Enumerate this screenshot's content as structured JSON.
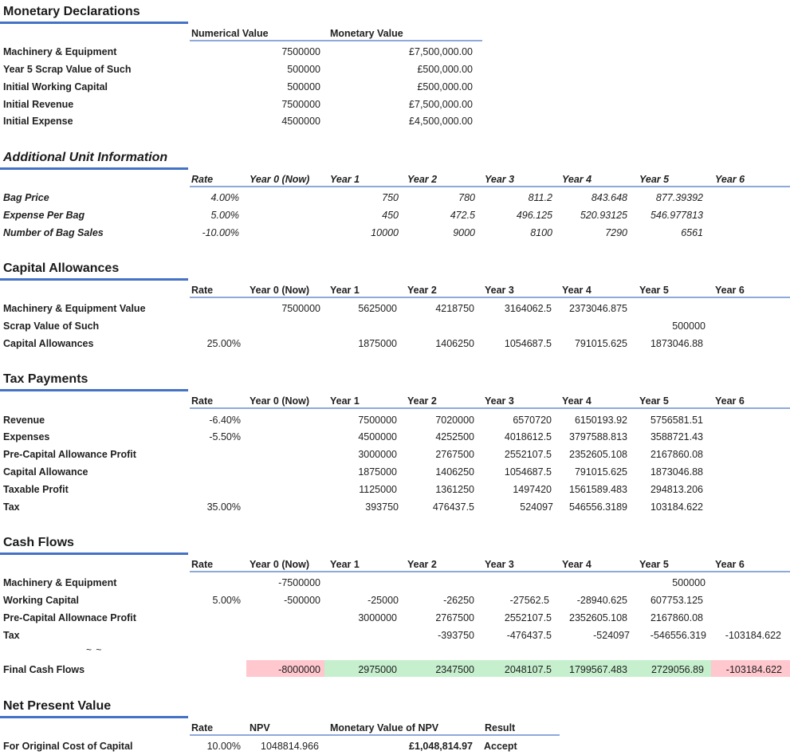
{
  "monetary": {
    "title": "Monetary Declarations",
    "col_numeric": "Numerical Value",
    "col_monetary": "Monetary Value",
    "rows": [
      {
        "label": "Machinery & Equipment",
        "num": "7500000",
        "money": "£7,500,000.00"
      },
      {
        "label": "Year 5 Scrap Value of Such",
        "num": "500000",
        "money": "£500,000.00"
      },
      {
        "label": "Initial Working Capital",
        "num": "500000",
        "money": "£500,000.00"
      },
      {
        "label": "Initial Revenue",
        "num": "7500000",
        "money": "£7,500,000.00"
      },
      {
        "label": "Initial Expense",
        "num": "4500000",
        "money": "£4,500,000.00"
      }
    ]
  },
  "year_headers": {
    "rate": "Rate",
    "y0": "Year 0 (Now)",
    "y1": "Year 1",
    "y2": "Year 2",
    "y3": "Year 3",
    "y4": "Year 4",
    "y5": "Year 5",
    "y6": "Year 6"
  },
  "additional": {
    "title": "Additional Unit Information",
    "rows": [
      {
        "label": "Bag Price",
        "rate": "4.00%",
        "y1": "750",
        "y2": "780",
        "y3": "811.2",
        "y4": "843.648",
        "y5": "877.39392"
      },
      {
        "label": "Expense Per Bag",
        "rate": "5.00%",
        "y1": "450",
        "y2": "472.5",
        "y3": "496.125",
        "y4": "520.93125",
        "y5": "546.977813"
      },
      {
        "label": "Number of Bag Sales",
        "rate": "-10.00%",
        "y1": "10000",
        "y2": "9000",
        "y3": "8100",
        "y4": "7290",
        "y5": "6561"
      }
    ]
  },
  "capital": {
    "title": "Capital Allowances",
    "rows": [
      {
        "label": "Machinery & Equipment Value",
        "y0": "7500000",
        "y1": "5625000",
        "y2": "4218750",
        "y3": "3164062.5",
        "y4": "2373046.875"
      },
      {
        "label": "Scrap Value of Such",
        "y5": "500000"
      },
      {
        "label": "Capital Allowances",
        "rate": "25.00%",
        "y1": "1875000",
        "y2": "1406250",
        "y3": "1054687.5",
        "y4": "791015.625",
        "y5": "1873046.88"
      }
    ]
  },
  "tax": {
    "title": "Tax Payments",
    "rows": [
      {
        "label": "Revenue",
        "rate": "-6.40%",
        "y1": "7500000",
        "y2": "7020000",
        "y3": "6570720",
        "y4": "6150193.92",
        "y5": "5756581.51"
      },
      {
        "label": "Expenses",
        "rate": "-5.50%",
        "y1": "4500000",
        "y2": "4252500",
        "y3": "4018612.5",
        "y4": "3797588.813",
        "y5": "3588721.43"
      },
      {
        "label": "Pre-Capital Allowance Profit",
        "y1": "3000000",
        "y2": "2767500",
        "y3": "2552107.5",
        "y4": "2352605.108",
        "y5": "2167860.08"
      },
      {
        "label": "Capital Allowance",
        "y1": "1875000",
        "y2": "1406250",
        "y3": "1054687.5",
        "y4": "791015.625",
        "y5": "1873046.88"
      },
      {
        "label": "Taxable Profit",
        "y1": "1125000",
        "y2": "1361250",
        "y3": "1497420",
        "y4": "1561589.483",
        "y5": "294813.206"
      },
      {
        "label": "Tax",
        "rate": "35.00%",
        "y1": "393750",
        "y2": "476437.5",
        "y3": "524097",
        "y4": "546556.3189",
        "y5": "103184.622"
      }
    ]
  },
  "cash": {
    "title": "Cash Flows",
    "rows": [
      {
        "label": "Machinery & Equipment",
        "y0": "-7500000",
        "y5": "500000"
      },
      {
        "label": "Working Capital",
        "rate": "5.00%",
        "y0": "-500000",
        "y1": "-25000",
        "y2": "-26250",
        "y3": "-27562.5",
        "y4": "-28940.625",
        "y5": "607753.125"
      },
      {
        "label": "Pre-Capital Allownace Profit",
        "y1": "3000000",
        "y2": "2767500",
        "y3": "2552107.5",
        "y4": "2352605.108",
        "y5": "2167860.08"
      },
      {
        "label": "Tax",
        "y2": "-393750",
        "y3": "-476437.5",
        "y4": "-524097",
        "y5": "-546556.319",
        "y6": "-103184.622"
      }
    ],
    "tilde": "~ ~",
    "final": {
      "label": "Final Cash Flows",
      "y0": "-8000000",
      "y1": "2975000",
      "y2": "2347500",
      "y3": "2048107.5",
      "y4": "1799567.483",
      "y5": "2729056.89",
      "y6": "-103184.622"
    },
    "colors": {
      "negative": "#ffc7ce",
      "positive": "#c6efce"
    }
  },
  "npv": {
    "title": "Net Present Value",
    "col_rate": "Rate",
    "col_npv": "NPV",
    "col_money": "Monetary Value of NPV",
    "col_result": "Result",
    "row": {
      "label": "For Original Cost of Capital",
      "rate": "10.00%",
      "npv": "1048814.966",
      "money": "£1,048,814.97",
      "result": "Accept"
    }
  },
  "accent": "#4472c4"
}
